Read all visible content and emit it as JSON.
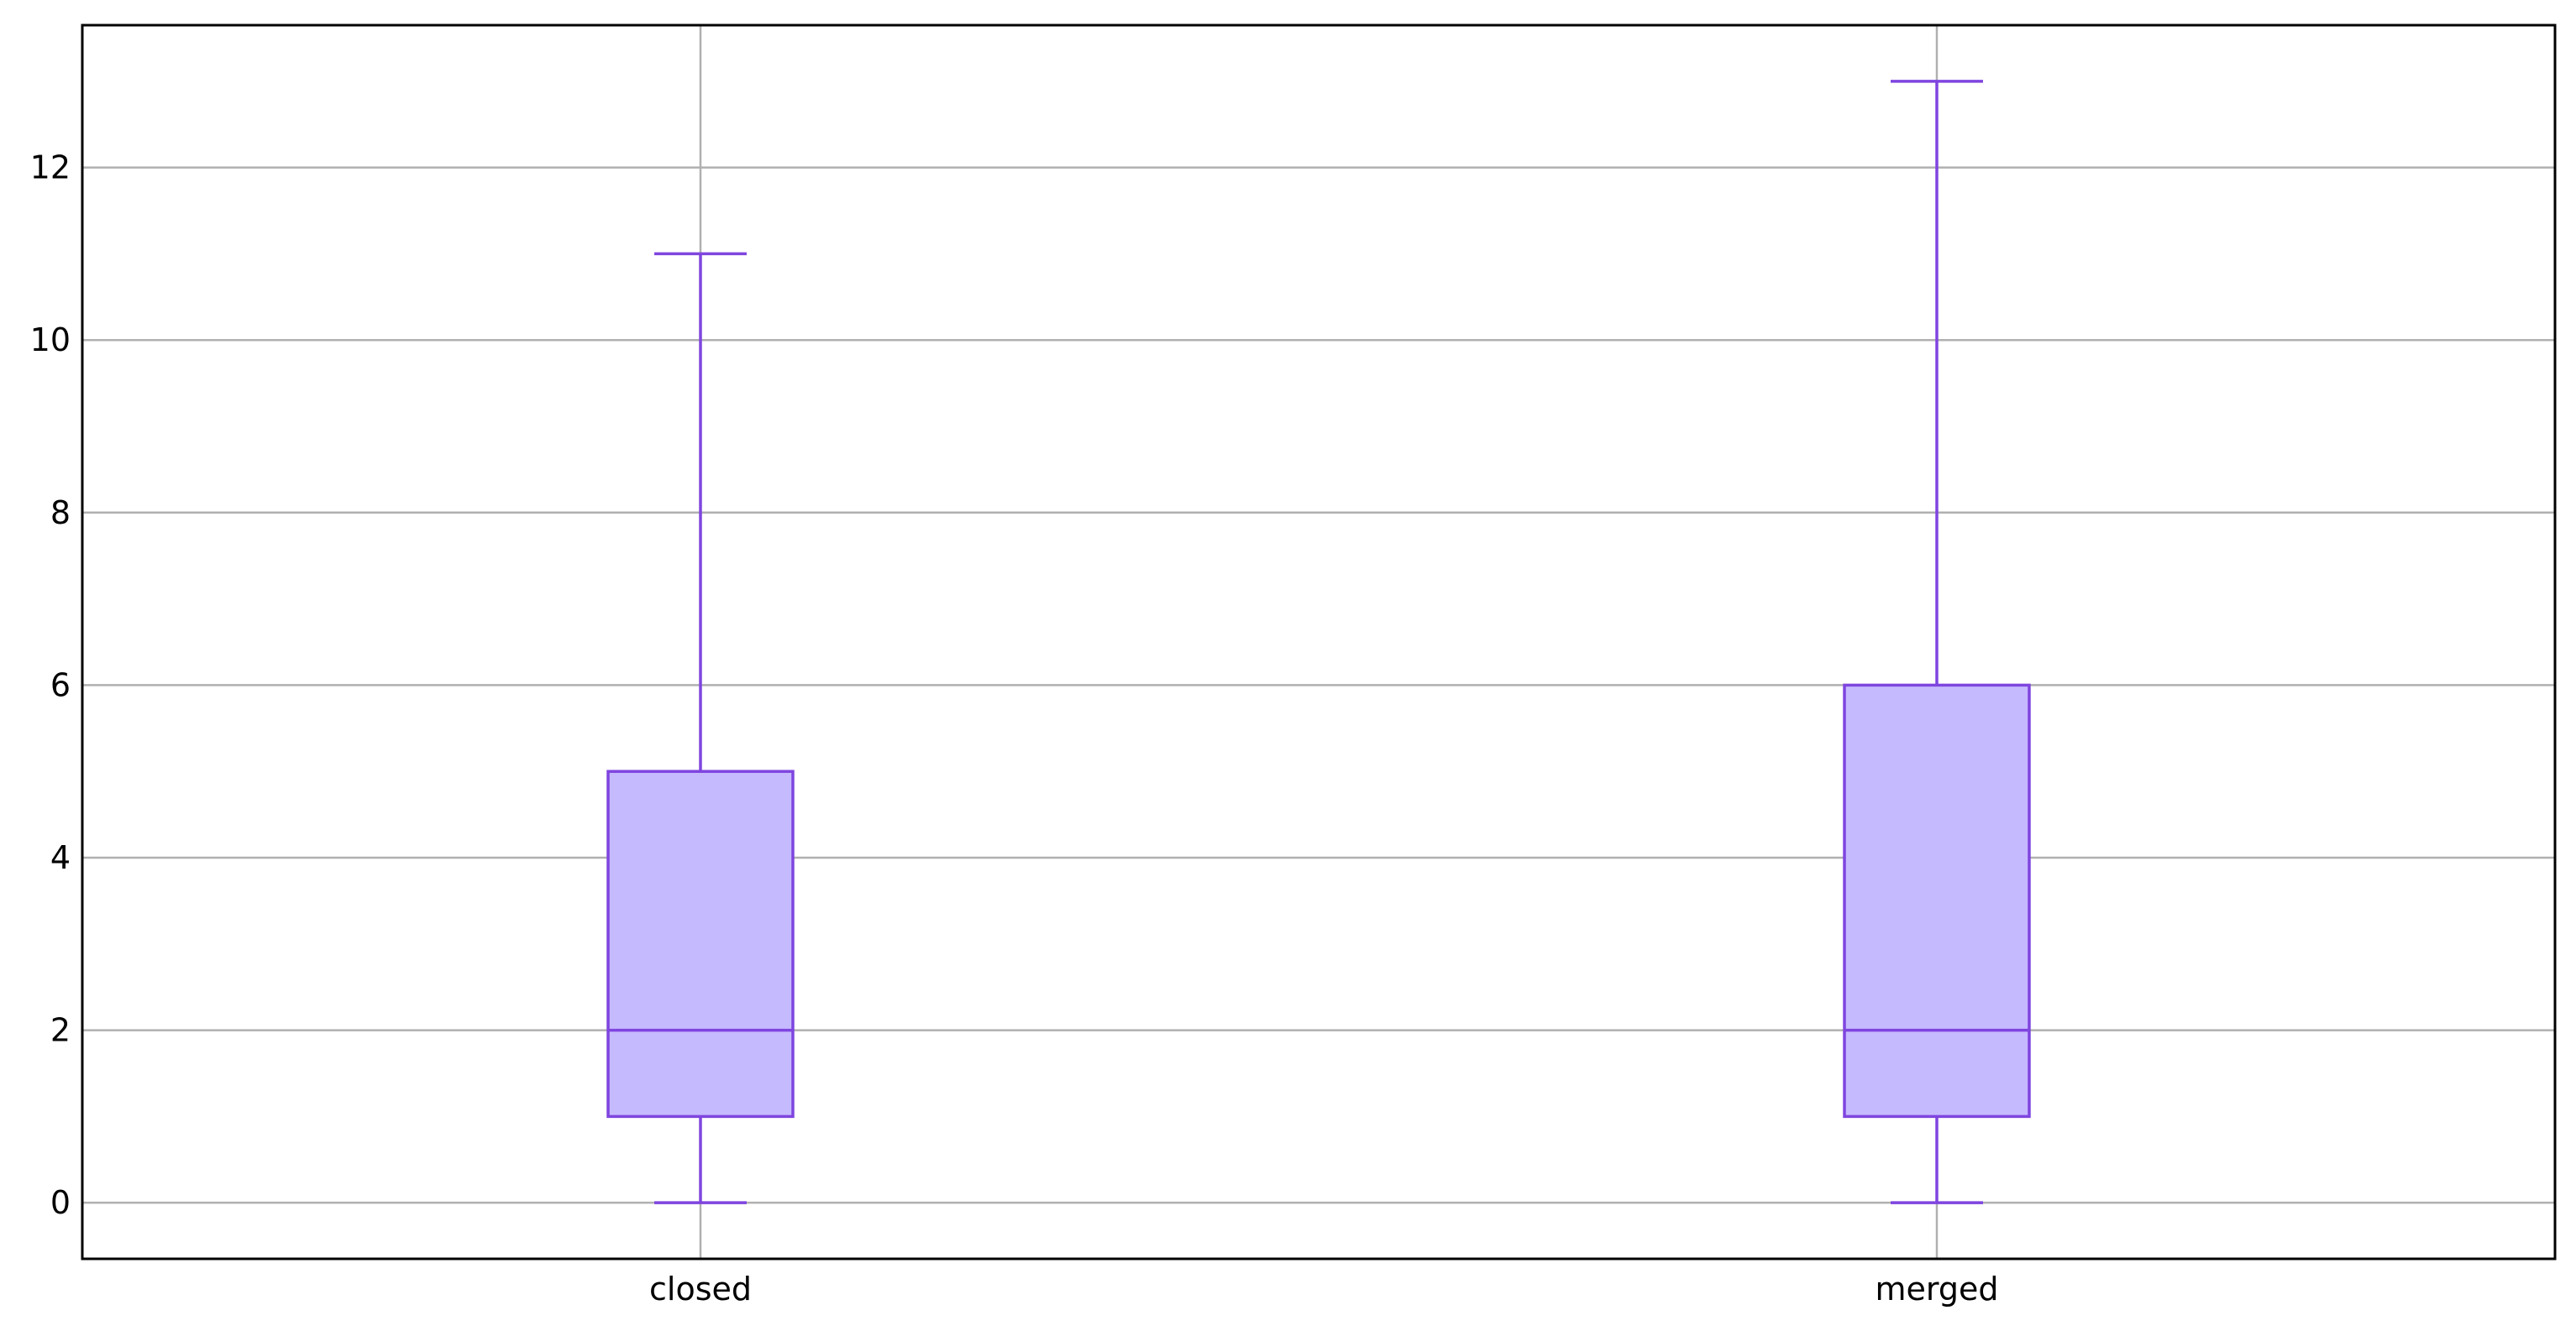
{
  "chart_data": {
    "type": "box",
    "categories": [
      "closed",
      "merged"
    ],
    "boxes": [
      {
        "category": "closed",
        "whisker_low": 0,
        "q1": 1,
        "median": 2,
        "q3": 5,
        "whisker_high": 11
      },
      {
        "category": "merged",
        "whisker_low": 0,
        "q1": 1,
        "median": 2,
        "q3": 6,
        "whisker_high": 13
      }
    ],
    "ylim": [
      -0.65,
      13.65
    ],
    "yticks": [
      0,
      2,
      4,
      6,
      8,
      10,
      12
    ],
    "ytick_labels": [
      "0",
      "2",
      "4",
      "6",
      "8",
      "10",
      "12"
    ],
    "grid": true,
    "colors": {
      "box_fill": "#c6baff",
      "box_edge": "#7f45df",
      "grid": "#b0b0b0",
      "axes": "#000000"
    }
  }
}
